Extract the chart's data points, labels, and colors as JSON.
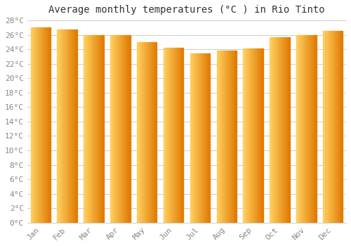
{
  "title": "Average monthly temperatures (°C ) in Rio Tinto",
  "months": [
    "Jan",
    "Feb",
    "Mar",
    "Apr",
    "May",
    "Jun",
    "Jul",
    "Aug",
    "Sep",
    "Oct",
    "Nov",
    "Dec"
  ],
  "values": [
    27.0,
    26.7,
    26.0,
    26.0,
    25.0,
    24.2,
    23.4,
    23.8,
    24.1,
    25.7,
    26.0,
    26.5
  ],
  "bar_color_main": "#FFAA00",
  "bar_color_light": "#FFD060",
  "bar_color_dark": "#E07800",
  "background_color": "#FFFFFF",
  "grid_color": "#CCCCCC",
  "ylim": [
    0,
    28
  ],
  "ytick_step": 2,
  "title_fontsize": 10,
  "tick_fontsize": 8,
  "font_family": "monospace"
}
